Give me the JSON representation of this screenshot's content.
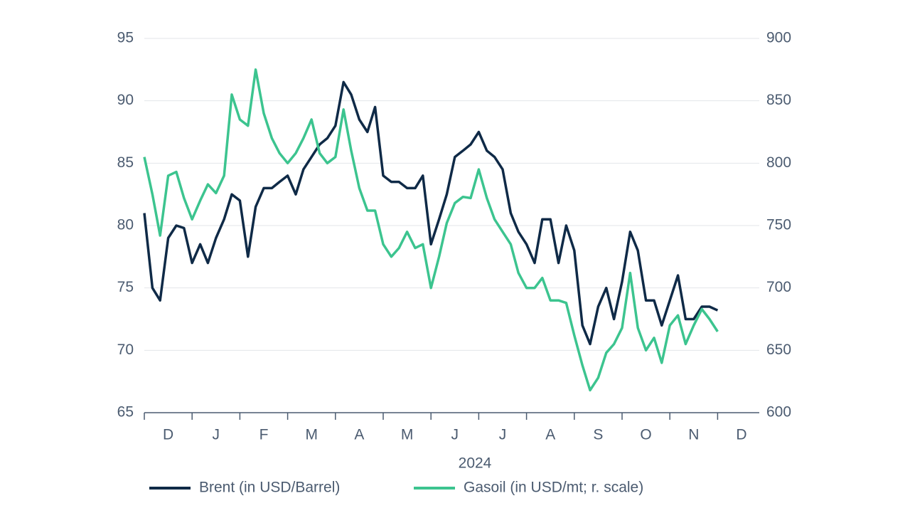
{
  "chart_data": {
    "type": "line",
    "categories": [
      "D",
      "J",
      "F",
      "M",
      "A",
      "M",
      "J",
      "J",
      "A",
      "S",
      "O",
      "N",
      "D"
    ],
    "x_title": "2024",
    "xlim": [
      0,
      13
    ],
    "x": [
      0,
      0.17,
      0.33,
      0.5,
      0.67,
      0.83,
      1,
      1.17,
      1.33,
      1.5,
      1.67,
      1.83,
      2,
      2.17,
      2.33,
      2.5,
      2.67,
      2.83,
      3,
      3.17,
      3.33,
      3.5,
      3.67,
      3.83,
      4,
      4.17,
      4.33,
      4.5,
      4.67,
      4.83,
      5,
      5.17,
      5.33,
      5.5,
      5.67,
      5.83,
      6,
      6.17,
      6.33,
      6.5,
      6.67,
      6.83,
      7,
      7.17,
      7.33,
      7.5,
      7.67,
      7.83,
      8,
      8.17,
      8.33,
      8.5,
      8.67,
      8.83,
      9,
      9.17,
      9.33,
      9.5,
      9.67,
      9.83,
      10,
      10.17,
      10.33,
      10.5,
      10.67,
      10.83,
      11,
      11.17,
      11.33,
      11.5,
      11.67,
      11.83,
      12
    ],
    "ylim": [
      65,
      95
    ],
    "yticks": [
      65,
      70,
      75,
      80,
      85,
      90,
      95
    ],
    "y2lim": [
      600,
      900
    ],
    "y2ticks": [
      600,
      650,
      700,
      750,
      800,
      850,
      900
    ],
    "grid": true,
    "legend": "bottom",
    "series": [
      {
        "name": "Brent (in USD/Barrel)",
        "color": "#0f2a47",
        "values": [
          81,
          75,
          74,
          79,
          80,
          79.8,
          77,
          78.5,
          77,
          79,
          80.5,
          82.5,
          82,
          77.5,
          81.5,
          83,
          83,
          83.5,
          84,
          82.5,
          84.5,
          85.5,
          86.5,
          87,
          88,
          91.5,
          90.5,
          88.5,
          87.5,
          89.5,
          84,
          83.5,
          83.5,
          83,
          83,
          84,
          78.5,
          80.5,
          82.5,
          85.5,
          86,
          86.5,
          87.5,
          86,
          85.5,
          84.5,
          81,
          79.5,
          78.5,
          77,
          80.5,
          80.5,
          77,
          80,
          78,
          72,
          70.5,
          73.5,
          75,
          72.5,
          75.5,
          79.5,
          78,
          74,
          74,
          72,
          74,
          76,
          72.5,
          72.5,
          73.5,
          73.5,
          73.2
        ]
      },
      {
        "name": "Gasoil (in USD/mt; r. scale)",
        "color": "#3cc48f",
        "axis": "y2",
        "values": [
          805,
          775,
          742,
          790,
          793,
          772,
          755,
          770,
          783,
          776,
          790,
          855,
          835,
          830,
          875,
          840,
          820,
          808,
          800,
          808,
          820,
          835,
          808,
          800,
          805,
          843,
          810,
          780,
          762,
          762,
          735,
          725,
          732,
          745,
          732,
          735,
          700,
          725,
          752,
          768,
          773,
          772,
          795,
          772,
          755,
          745,
          735,
          712,
          700,
          700,
          708,
          690,
          690,
          688,
          662,
          638,
          618,
          628,
          648,
          655,
          668,
          712,
          668,
          650,
          660,
          640,
          670,
          678,
          655,
          670,
          683,
          675,
          665
        ]
      }
    ]
  }
}
